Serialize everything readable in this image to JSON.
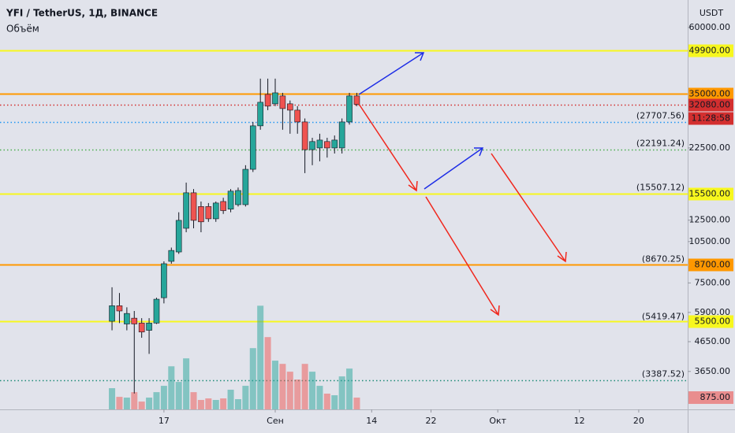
{
  "header": {
    "symbol": "YFI / TetherUS, 1Д, BINANCE",
    "indicator": "Объём"
  },
  "chart_data": {
    "type": "candlestick",
    "log_scale": true,
    "currency": "USDT",
    "ylim": [
      2680,
      75000
    ],
    "yticks": [
      {
        "value": 60000,
        "label": "60000.00"
      },
      {
        "value": 22500,
        "label": "22500.00"
      },
      {
        "value": 12500,
        "label": "12500.00"
      },
      {
        "value": 10500,
        "label": "10500.00"
      },
      {
        "value": 7500,
        "label": "7500.00"
      },
      {
        "value": 5900,
        "label": "5900.00"
      },
      {
        "value": 4650,
        "label": "4650.00"
      },
      {
        "value": 3650,
        "label": "3650.00"
      }
    ],
    "xlim": [
      -22.1,
      70.6
    ],
    "xticks": [
      {
        "value": 0,
        "label": "17"
      },
      {
        "value": 15,
        "label": "Сен"
      },
      {
        "value": 28,
        "label": "14"
      },
      {
        "value": 36,
        "label": "22"
      },
      {
        "value": 45,
        "label": "Окт"
      },
      {
        "value": 56,
        "label": "12"
      },
      {
        "value": 64,
        "label": "20"
      }
    ],
    "up_color": "#26a69a",
    "down_color": "#ef5350",
    "x": [
      -7,
      -6,
      -5,
      -4,
      -3,
      -2,
      -1,
      0,
      1,
      2,
      3,
      4,
      5,
      6,
      7,
      8,
      9,
      10,
      11,
      12,
      13,
      14,
      15,
      16,
      17,
      18,
      19,
      20,
      21,
      22,
      23,
      24,
      25,
      26
    ],
    "open": [
      5490,
      6230,
      5370,
      5630,
      5410,
      5100,
      5410,
      6650,
      8940,
      9650,
      11700,
      15620,
      13970,
      13970,
      12640,
      14550,
      13670,
      14180,
      14180,
      18910,
      26930,
      34800,
      32220,
      34350,
      32220,
      30600,
      27800,
      22190,
      22500,
      23700,
      22500,
      22500,
      27800,
      34350
    ],
    "high": [
      7240,
      6910,
      6150,
      5970,
      5630,
      5630,
      6650,
      8940,
      10000,
      13330,
      16970,
      16100,
      14550,
      14370,
      14550,
      15000,
      16100,
      16300,
      19550,
      27800,
      39550,
      39550,
      39550,
      35230,
      33100,
      31620,
      28600,
      24440,
      25260,
      24440,
      24900,
      28600,
      35230,
      35230
    ],
    "low": [
      5100,
      5410,
      5100,
      3050,
      4800,
      4210,
      5370,
      6350,
      8770,
      9500,
      11330,
      11700,
      11330,
      12330,
      12330,
      13150,
      13330,
      13970,
      13970,
      18500,
      26090,
      30600,
      31620,
      26090,
      25260,
      25260,
      18330,
      19550,
      20180,
      20800,
      21500,
      21500,
      27200,
      31620
    ],
    "close": [
      6230,
      5970,
      5850,
      5370,
      5030,
      5410,
      6570,
      8770,
      9770,
      12480,
      15620,
      12480,
      12330,
      12640,
      14370,
      13510,
      15830,
      15910,
      18910,
      26930,
      32630,
      31620,
      35230,
      31000,
      30600,
      27800,
      22190,
      23700,
      23990,
      22500,
      23990,
      27800,
      34350,
      32080
    ],
    "volume": {
      "values": [
        1575,
        930,
        875,
        1280,
        580,
        875,
        1280,
        1750,
        3200,
        2040,
        3790,
        1280,
        700,
        816,
        700,
        816,
        1460,
        760,
        1750,
        4550,
        7700,
        5370,
        3620,
        3380,
        2800,
        2220,
        3380,
        2800,
        1750,
        1170,
        1050,
        2450,
        3030,
        875
      ],
      "ylim": [
        0,
        10000
      ],
      "last": {
        "value": 875,
        "label": "875.00"
      }
    },
    "countdown": "11:28:58",
    "levels": [
      {
        "value": 49900,
        "label": "49900.00",
        "color": "#f7f71e",
        "text_color": "#000000",
        "style": "solid",
        "box": true
      },
      {
        "value": 35000,
        "label": "35000.00",
        "color": "#ff9800",
        "text_color": "#000000",
        "style": "solid",
        "box": true
      },
      {
        "value": 32080,
        "label": "32080.00",
        "color": "#d32f2f",
        "text_color": "#ffffff",
        "style": "dotted",
        "box": true
      },
      {
        "value": 27707.56,
        "label": "(27707.56)",
        "color": "#2196f3",
        "text_color": "#2196f3",
        "style": "dotted",
        "box": false
      },
      {
        "value": 22191.24,
        "label": "(22191.24)",
        "color": "#4caf50",
        "text_color": "#2e9e3a",
        "style": "dotted",
        "box": false
      },
      {
        "value": 15507.12,
        "label": "(15507.12)",
        "color": "#f44336",
        "text_color": "#e53935",
        "style": "none",
        "box": false
      },
      {
        "value": 15500,
        "label": "15500.00",
        "color": "#f7f71e",
        "text_color": "#000000",
        "style": "solid",
        "box": true
      },
      {
        "value": 8670.25,
        "label": "(8670.25)",
        "color": "#c68a3a",
        "text_color": "#b07a2c",
        "style": "none",
        "box": false
      },
      {
        "value": 8700,
        "label": "8700.00",
        "color": "#ff9800",
        "text_color": "#000000",
        "style": "solid",
        "box": true
      },
      {
        "value": 5419.47,
        "label": "(5419.47)",
        "color": "#4caf50",
        "text_color": "#2e9e3a",
        "style": "none",
        "box": false
      },
      {
        "value": 5500,
        "label": "5500.00",
        "color": "#f7f71e",
        "text_color": "#000000",
        "style": "solid",
        "box": true
      },
      {
        "value": 3387.52,
        "label": "(3387.52)",
        "color": "#1e8c78",
        "text_color": "#1e8c78",
        "style": "dotted",
        "box": false
      }
    ]
  }
}
